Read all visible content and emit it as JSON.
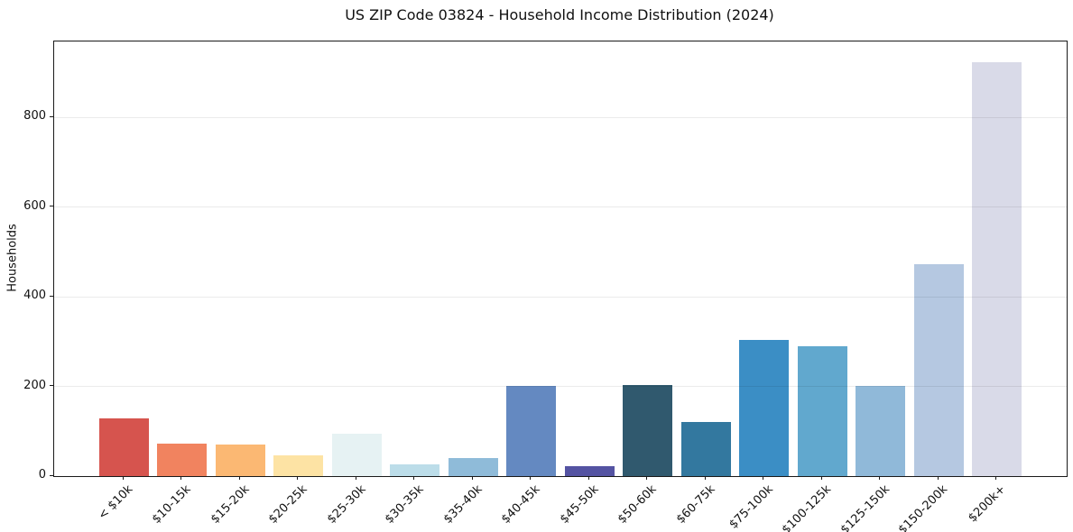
{
  "chart_data": {
    "type": "bar",
    "title": "US ZIP Code 03824 - Household Income Distribution (2024)",
    "xlabel": "",
    "ylabel": "Households",
    "categories": [
      "< $10k",
      "$10-15k",
      "$15-20k",
      "$20-25k",
      "$25-30k",
      "$30-35k",
      "$35-40k",
      "$40-45k",
      "$45-50k",
      "$50-60k",
      "$60-75k",
      "$75-100k",
      "$100-125k",
      "$125-150k",
      "$150-200k",
      "$200k+"
    ],
    "values": [
      129,
      72,
      70,
      47,
      94,
      27,
      40,
      201,
      23,
      204,
      120,
      304,
      290,
      201,
      472,
      924
    ],
    "bar_colors": [
      "#d6544e",
      "#f1835f",
      "#fbb873",
      "#fde3a4",
      "#e6f2f3",
      "#bcdde9",
      "#8fbbd9",
      "#6489c1",
      "#5453a2",
      "#30596e",
      "#33789f",
      "#3b8ec5",
      "#61a8ce",
      "#90b9d9",
      "#b5c8e1",
      "#d9dae8"
    ],
    "yticks": [
      0,
      200,
      400,
      600,
      800
    ],
    "ylim": [
      0,
      970
    ],
    "grid": "horizontal-only",
    "legend": "none",
    "background_color": "#ffffff",
    "spine_color": "#1a1a1a",
    "grid_color": "#e9e9e9",
    "text_color": "#111111"
  }
}
